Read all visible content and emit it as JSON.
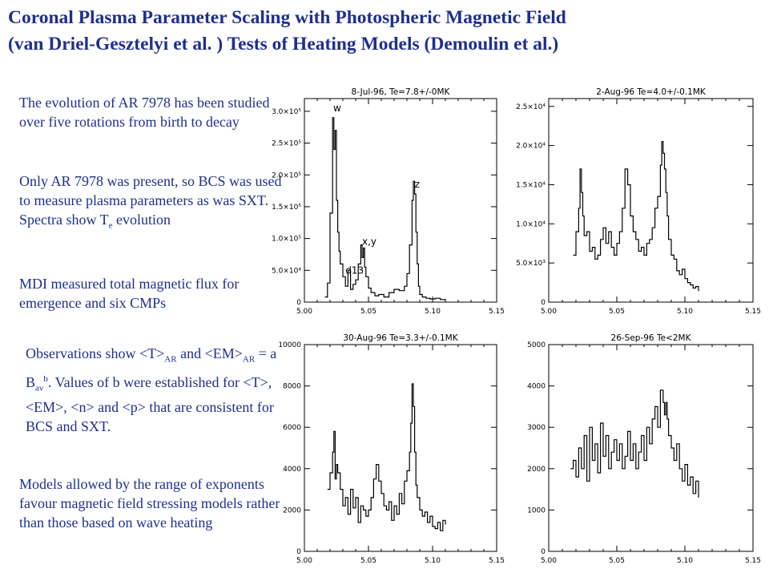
{
  "title_line1": "Coronal Plasma Parameter Scaling with Photospheric Magnetic Field",
  "title_line2": "(van Driel-Gesztelyi et al. ) Tests of Heating Models (Demoulin et al.)",
  "paragraphs": {
    "p1": "The evolution of AR 7978 has been studied over five rotations from birth to decay",
    "p2_a": "Only AR 7978 was present, so BCS was used to measure plasma parameters as was SXT. Spectra show T",
    "p2_sub": "e",
    "p2_b": " evolution",
    "p3": "MDI measured total magnetic flux for emergence and six CMPs",
    "p4_a": "Observations show <T>",
    "p4_sub1": "AR",
    "p4_b": " and <EM>",
    "p4_sub2": "AR",
    "p4_c": " = a B",
    "p4_sub3": "av",
    "p4_sup": "b",
    "p4_d": ". Values of  b were established for <T>, <EM>, <n> and <p> that are consistent for BCS and SXT.",
    "p5": "Models allowed by the range of exponents favour magnetic field stressing models rather than those based on wave heating"
  },
  "colors": {
    "text": "#1f2f8f",
    "plot": "#000000"
  },
  "chart_data": [
    {
      "type": "line",
      "title": "8-Jul-96, Te=7.8+/-0MK",
      "xlim": [
        5.0,
        5.15
      ],
      "ylim": [
        0,
        320000
      ],
      "x_ticks": [
        "5.00",
        "5.05",
        "5.10",
        "5.15"
      ],
      "y_ticks": [
        "0",
        "5.0×10⁴",
        "1.0×10⁵",
        "1.5×10⁵",
        "2.0×10⁵",
        "2.5×10⁵",
        "3.0×10⁵"
      ],
      "y_tick_values": [
        0,
        50000,
        100000,
        150000,
        200000,
        250000,
        300000
      ],
      "annotations": [
        {
          "text": "w",
          "x": 5.0225,
          "y": 300000
        },
        {
          "text": "d13",
          "x": 5.032,
          "y": 45000
        },
        {
          "text": "x,y",
          "x": 5.045,
          "y": 90000
        },
        {
          "text": "z",
          "x": 5.086,
          "y": 180000
        }
      ],
      "series": [
        {
          "x": [
            5.016,
            5.018,
            5.02,
            5.022,
            5.023,
            5.024,
            5.025,
            5.026,
            5.027,
            5.028,
            5.03,
            5.032,
            5.034,
            5.036,
            5.038,
            5.04,
            5.042,
            5.044,
            5.045,
            5.046,
            5.047,
            5.048,
            5.05,
            5.052,
            5.055,
            5.058,
            5.062,
            5.066,
            5.07,
            5.074,
            5.078,
            5.08,
            5.082,
            5.084,
            5.085,
            5.086,
            5.087,
            5.088,
            5.089,
            5.09,
            5.092,
            5.095,
            5.098,
            5.102,
            5.106,
            5.11
          ],
          "y": [
            8000,
            30000,
            140000,
            290000,
            240000,
            270000,
            160000,
            110000,
            80000,
            60000,
            40000,
            25000,
            50000,
            20000,
            28000,
            35000,
            60000,
            90000,
            70000,
            85000,
            55000,
            40000,
            22000,
            15000,
            10000,
            12000,
            8000,
            15000,
            20000,
            18000,
            25000,
            45000,
            90000,
            160000,
            190000,
            170000,
            110000,
            60000,
            25000,
            12000,
            8000,
            6000,
            5000,
            6000,
            4000,
            5000
          ]
        }
      ]
    },
    {
      "type": "line",
      "title": "2-Aug-96 Te=4.0+/-0.1MK",
      "xlim": [
        5.0,
        5.15
      ],
      "ylim": [
        0,
        26000
      ],
      "x_ticks": [
        "5.00",
        "5.05",
        "5.10",
        "5.15"
      ],
      "y_ticks": [
        "0",
        "5.0×10³",
        "1.0×10⁴",
        "1.5×10⁴",
        "2.0×10⁴",
        "2.5×10⁴"
      ],
      "y_tick_values": [
        0,
        5000,
        10000,
        15000,
        20000,
        25000
      ],
      "annotations": [],
      "series": [
        {
          "x": [
            5.018,
            5.02,
            5.022,
            5.023,
            5.024,
            5.025,
            5.026,
            5.028,
            5.03,
            5.032,
            5.034,
            5.036,
            5.038,
            5.04,
            5.042,
            5.044,
            5.046,
            5.048,
            5.05,
            5.052,
            5.054,
            5.056,
            5.058,
            5.06,
            5.062,
            5.064,
            5.066,
            5.068,
            5.07,
            5.072,
            5.074,
            5.076,
            5.078,
            5.08,
            5.082,
            5.083,
            5.084,
            5.085,
            5.086,
            5.087,
            5.088,
            5.09,
            5.092,
            5.094,
            5.096,
            5.098,
            5.1,
            5.102,
            5.104,
            5.106,
            5.108,
            5.11
          ],
          "y": [
            6000,
            9000,
            12000,
            17000,
            14000,
            11000,
            8500,
            9000,
            6500,
            7000,
            5500,
            6000,
            8000,
            9500,
            7500,
            9000,
            7000,
            6000,
            7500,
            9000,
            12000,
            17000,
            15000,
            11000,
            9000,
            8000,
            6500,
            7000,
            6000,
            7500,
            8000,
            9500,
            12000,
            13500,
            17500,
            20500,
            19000,
            17000,
            14000,
            11000,
            8000,
            6000,
            5500,
            4000,
            3500,
            4200,
            3000,
            2500,
            2200,
            1800,
            2000,
            1400
          ]
        }
      ]
    },
    {
      "type": "line",
      "title": "30-Aug-96 Te=3.3+/-0.1MK",
      "xlim": [
        5.0,
        5.15
      ],
      "ylim": [
        0,
        10000
      ],
      "x_ticks": [
        "5.00",
        "5.05",
        "5.10",
        "5.15"
      ],
      "y_ticks": [
        "0",
        "2000",
        "4000",
        "6000",
        "8000",
        "10000"
      ],
      "y_tick_values": [
        0,
        2000,
        4000,
        6000,
        8000,
        10000
      ],
      "annotations": [],
      "series": [
        {
          "x": [
            5.018,
            5.02,
            5.022,
            5.023,
            5.024,
            5.025,
            5.026,
            5.028,
            5.03,
            5.032,
            5.034,
            5.036,
            5.038,
            5.04,
            5.042,
            5.044,
            5.046,
            5.048,
            5.05,
            5.052,
            5.054,
            5.056,
            5.058,
            5.06,
            5.062,
            5.064,
            5.066,
            5.068,
            5.07,
            5.072,
            5.074,
            5.076,
            5.078,
            5.08,
            5.082,
            5.083,
            5.084,
            5.085,
            5.086,
            5.087,
            5.088,
            5.09,
            5.092,
            5.094,
            5.096,
            5.098,
            5.1,
            5.102,
            5.104,
            5.106,
            5.108,
            5.11
          ],
          "y": [
            3000,
            3800,
            4800,
            5800,
            3500,
            4200,
            3800,
            3000,
            2200,
            2600,
            1800,
            3000,
            2100,
            2600,
            1400,
            2200,
            2000,
            1700,
            2000,
            2600,
            3500,
            4200,
            3400,
            2800,
            2200,
            2000,
            2400,
            1500,
            2200,
            1800,
            2800,
            2300,
            3400,
            3900,
            4800,
            6200,
            8100,
            7000,
            4800,
            3200,
            2600,
            2000,
            1700,
            1900,
            1400,
            1700,
            1200,
            1100,
            1400,
            1000,
            1500,
            1300
          ]
        }
      ]
    },
    {
      "type": "line",
      "title": "26-Sep-96 Te<2MK",
      "xlim": [
        5.0,
        5.15
      ],
      "ylim": [
        0,
        5000
      ],
      "x_ticks": [
        "5.00",
        "5.05",
        "5.10",
        "5.15"
      ],
      "y_ticks": [
        "0",
        "1000",
        "2000",
        "3000",
        "4000",
        "5000"
      ],
      "y_tick_values": [
        0,
        1000,
        2000,
        3000,
        4000,
        5000
      ],
      "annotations": [],
      "series": [
        {
          "x": [
            5.016,
            5.018,
            5.02,
            5.022,
            5.024,
            5.026,
            5.028,
            5.03,
            5.032,
            5.034,
            5.036,
            5.038,
            5.04,
            5.042,
            5.044,
            5.046,
            5.048,
            5.05,
            5.052,
            5.054,
            5.056,
            5.058,
            5.06,
            5.062,
            5.064,
            5.066,
            5.068,
            5.07,
            5.072,
            5.074,
            5.076,
            5.078,
            5.08,
            5.082,
            5.084,
            5.085,
            5.086,
            5.087,
            5.088,
            5.09,
            5.092,
            5.094,
            5.096,
            5.098,
            5.1,
            5.102,
            5.104,
            5.106,
            5.108,
            5.11
          ],
          "y": [
            2000,
            2200,
            1800,
            2500,
            2000,
            2800,
            1700,
            3000,
            2200,
            2600,
            1900,
            3100,
            2300,
            2800,
            2000,
            2400,
            2700,
            2200,
            2600,
            2000,
            2300,
            2900,
            2200,
            2600,
            2000,
            2400,
            2800,
            2200,
            3000,
            2600,
            3200,
            3500,
            3000,
            3900,
            3600,
            3300,
            3600,
            3200,
            2800,
            2500,
            2200,
            2600,
            2000,
            1700,
            2100,
            1600,
            1800,
            1400,
            1700,
            1300
          ]
        }
      ]
    }
  ]
}
